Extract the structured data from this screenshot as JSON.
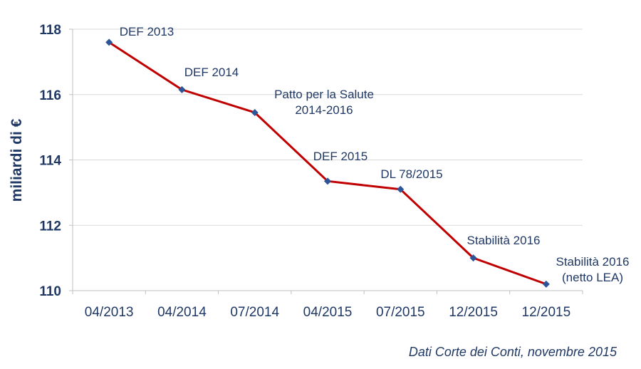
{
  "chart_data": {
    "type": "line",
    "categories": [
      "04/2013",
      "04/2014",
      "07/2014",
      "04/2015",
      "07/2015",
      "12/2015",
      "12/2015"
    ],
    "series": [
      {
        "values": [
          117.6,
          116.15,
          115.45,
          113.35,
          113.1,
          111.0,
          110.2
        ]
      }
    ],
    "annotations": [
      [
        "DEF 2013"
      ],
      [
        "DEF 2014"
      ],
      [
        "Patto per la Salute",
        "2014-2016"
      ],
      [
        "DEF 2015"
      ],
      [
        "DL 78/2015"
      ],
      [
        "Stabilità 2016"
      ],
      [
        "Stabilità 2016",
        "(netto LEA)"
      ]
    ],
    "ylabel": "miliardi di €",
    "ylim": [
      110,
      118
    ],
    "yticks": [
      110,
      112,
      114,
      116,
      118
    ],
    "grid": true,
    "line_color": "#c00000",
    "marker_color": "#2e5597",
    "text_color": "#1f3864"
  },
  "source_note": "Dati Corte dei Conti, novembre 2015"
}
